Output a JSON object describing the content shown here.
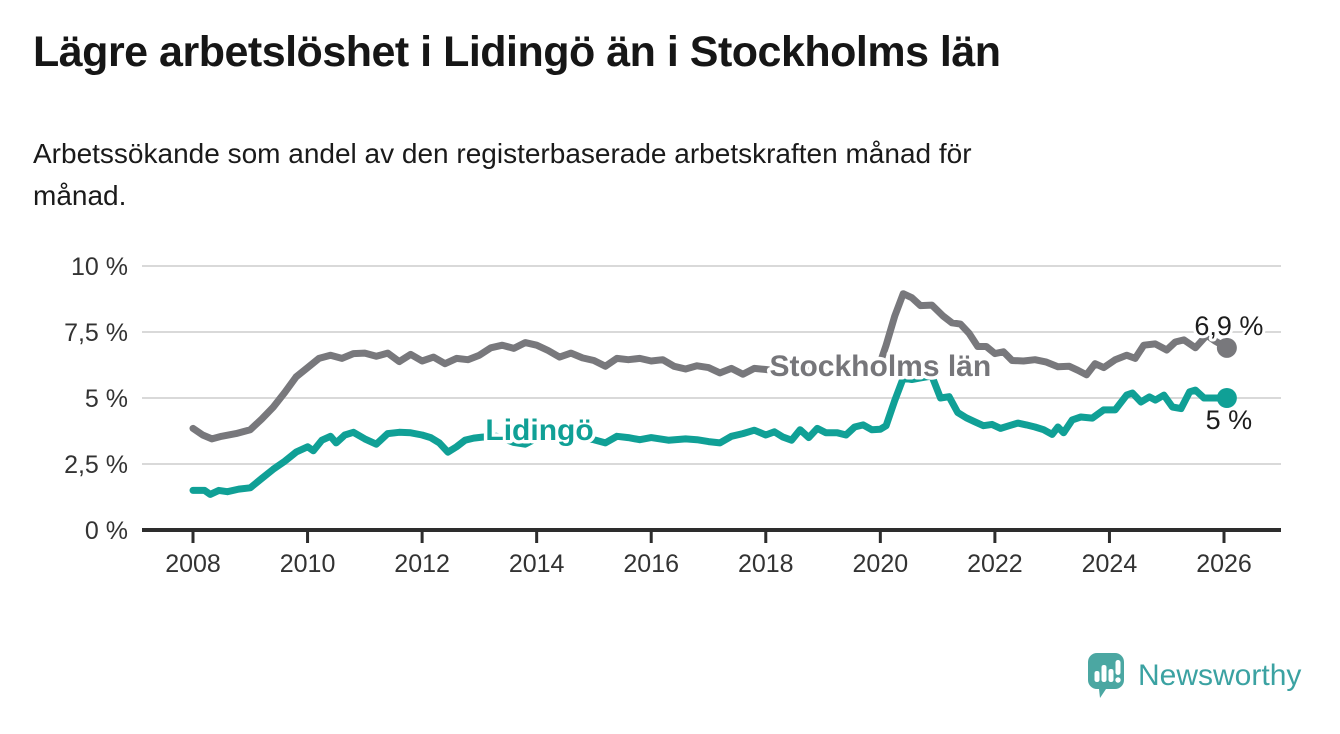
{
  "header": {
    "title": "Lägre arbetslöshet i Lidingö än i Stockholms län",
    "subtitle_line1": "Arbetssökande som andel av den registerbaserade arbetskraften månad för",
    "subtitle_line2": "månad."
  },
  "footer": {
    "brand": "Newsworthy"
  },
  "colors": {
    "stockholm_line": "#78787C",
    "lidingo_line": "#10A096",
    "grid": "#D9D9D9",
    "axis": "#2D2D2D",
    "tick_text": "#333333",
    "end_label_text": "#1D1D1D",
    "logo_icon": "#4BA7A2",
    "logo_text": "#3BA2A2"
  },
  "chart_data": {
    "type": "line",
    "title": "Lägre arbetslöshet i Lidingö än i Stockholms län",
    "xlabel": "",
    "ylabel": "",
    "grid": true,
    "legend_position": "inline-labels",
    "xlim": [
      2007.1,
      2026.95
    ],
    "ylim": [
      0,
      10
    ],
    "x_ticks": [
      {
        "value": 2008,
        "label": "2008"
      },
      {
        "value": 2010,
        "label": "2010"
      },
      {
        "value": 2012,
        "label": "2012"
      },
      {
        "value": 2014,
        "label": "2014"
      },
      {
        "value": 2016,
        "label": "2016"
      },
      {
        "value": 2018,
        "label": "2018"
      },
      {
        "value": 2020,
        "label": "2020"
      },
      {
        "value": 2022,
        "label": "2022"
      },
      {
        "value": 2024,
        "label": "2024"
      },
      {
        "value": 2026,
        "label": "2026"
      }
    ],
    "y_ticks": [
      {
        "value": 0,
        "label": "0 %"
      },
      {
        "value": 2.5,
        "label": "2,5 %"
      },
      {
        "value": 5,
        "label": "5 %"
      },
      {
        "value": 7.5,
        "label": "7,5 %"
      },
      {
        "value": 10,
        "label": "10 %"
      }
    ],
    "series": [
      {
        "name": "Stockholms län",
        "color": "#78787C",
        "label_color": "#76767A",
        "label_pos": {
          "x": 2020.0,
          "y": 6.21
        },
        "end_label": "6,9 %",
        "end_value": 6.9,
        "end_label_side": "above",
        "points": [
          [
            2008.0,
            3.85
          ],
          [
            2008.17,
            3.6
          ],
          [
            2008.33,
            3.45
          ],
          [
            2008.5,
            3.55
          ],
          [
            2008.75,
            3.65
          ],
          [
            2009.0,
            3.8
          ],
          [
            2009.2,
            4.2
          ],
          [
            2009.4,
            4.65
          ],
          [
            2009.6,
            5.2
          ],
          [
            2009.8,
            5.8
          ],
          [
            2010.0,
            6.15
          ],
          [
            2010.2,
            6.5
          ],
          [
            2010.4,
            6.62
          ],
          [
            2010.6,
            6.5
          ],
          [
            2010.8,
            6.68
          ],
          [
            2011.0,
            6.7
          ],
          [
            2011.2,
            6.58
          ],
          [
            2011.4,
            6.7
          ],
          [
            2011.6,
            6.38
          ],
          [
            2011.8,
            6.65
          ],
          [
            2012.0,
            6.4
          ],
          [
            2012.2,
            6.55
          ],
          [
            2012.4,
            6.3
          ],
          [
            2012.6,
            6.5
          ],
          [
            2012.8,
            6.45
          ],
          [
            2013.0,
            6.62
          ],
          [
            2013.2,
            6.9
          ],
          [
            2013.4,
            7.0
          ],
          [
            2013.6,
            6.88
          ],
          [
            2013.8,
            7.1
          ],
          [
            2014.0,
            7.0
          ],
          [
            2014.2,
            6.8
          ],
          [
            2014.4,
            6.55
          ],
          [
            2014.6,
            6.7
          ],
          [
            2014.8,
            6.52
          ],
          [
            2015.0,
            6.42
          ],
          [
            2015.2,
            6.2
          ],
          [
            2015.4,
            6.5
          ],
          [
            2015.6,
            6.45
          ],
          [
            2015.8,
            6.5
          ],
          [
            2016.0,
            6.4
          ],
          [
            2016.2,
            6.45
          ],
          [
            2016.4,
            6.2
          ],
          [
            2016.6,
            6.1
          ],
          [
            2016.8,
            6.22
          ],
          [
            2017.0,
            6.15
          ],
          [
            2017.2,
            5.95
          ],
          [
            2017.4,
            6.12
          ],
          [
            2017.6,
            5.9
          ],
          [
            2017.8,
            6.12
          ],
          [
            2018.0,
            6.08
          ],
          [
            2018.3,
            6.0
          ],
          [
            2018.6,
            6.05
          ],
          [
            2018.9,
            6.05
          ],
          [
            2019.2,
            6.1
          ],
          [
            2019.5,
            6.15
          ],
          [
            2019.8,
            6.22
          ],
          [
            2020.0,
            6.35
          ],
          [
            2020.1,
            7.0
          ],
          [
            2020.25,
            8.1
          ],
          [
            2020.4,
            8.95
          ],
          [
            2020.55,
            8.8
          ],
          [
            2020.7,
            8.5
          ],
          [
            2020.9,
            8.52
          ],
          [
            2021.1,
            8.1
          ],
          [
            2021.25,
            7.85
          ],
          [
            2021.4,
            7.8
          ],
          [
            2021.55,
            7.45
          ],
          [
            2021.7,
            6.95
          ],
          [
            2021.85,
            6.95
          ],
          [
            2022.0,
            6.68
          ],
          [
            2022.15,
            6.75
          ],
          [
            2022.3,
            6.42
          ],
          [
            2022.5,
            6.4
          ],
          [
            2022.7,
            6.45
          ],
          [
            2022.9,
            6.36
          ],
          [
            2023.1,
            6.18
          ],
          [
            2023.3,
            6.2
          ],
          [
            2023.45,
            6.05
          ],
          [
            2023.6,
            5.88
          ],
          [
            2023.75,
            6.3
          ],
          [
            2023.9,
            6.15
          ],
          [
            2024.1,
            6.45
          ],
          [
            2024.3,
            6.62
          ],
          [
            2024.45,
            6.5
          ],
          [
            2024.6,
            7.0
          ],
          [
            2024.8,
            7.05
          ],
          [
            2025.0,
            6.82
          ],
          [
            2025.15,
            7.12
          ],
          [
            2025.3,
            7.2
          ],
          [
            2025.5,
            6.9
          ],
          [
            2025.7,
            7.38
          ],
          [
            2025.85,
            7.15
          ],
          [
            2026.05,
            6.9
          ]
        ]
      },
      {
        "name": "Lidingö",
        "color": "#10A096",
        "label_color": "#10A096",
        "label_pos": {
          "x": 2014.05,
          "y": 3.79
        },
        "end_label": "5 %",
        "end_value": 5.0,
        "end_label_side": "below",
        "points": [
          [
            2008.0,
            1.5
          ],
          [
            2008.2,
            1.5
          ],
          [
            2008.3,
            1.35
          ],
          [
            2008.45,
            1.5
          ],
          [
            2008.6,
            1.45
          ],
          [
            2008.8,
            1.55
          ],
          [
            2009.0,
            1.6
          ],
          [
            2009.2,
            1.95
          ],
          [
            2009.4,
            2.3
          ],
          [
            2009.6,
            2.6
          ],
          [
            2009.8,
            2.95
          ],
          [
            2010.0,
            3.15
          ],
          [
            2010.1,
            3.0
          ],
          [
            2010.25,
            3.4
          ],
          [
            2010.4,
            3.55
          ],
          [
            2010.5,
            3.3
          ],
          [
            2010.65,
            3.6
          ],
          [
            2010.8,
            3.7
          ],
          [
            2011.0,
            3.45
          ],
          [
            2011.2,
            3.25
          ],
          [
            2011.4,
            3.65
          ],
          [
            2011.6,
            3.7
          ],
          [
            2011.8,
            3.68
          ],
          [
            2012.0,
            3.6
          ],
          [
            2012.15,
            3.5
          ],
          [
            2012.3,
            3.3
          ],
          [
            2012.45,
            2.95
          ],
          [
            2012.6,
            3.15
          ],
          [
            2012.75,
            3.4
          ],
          [
            2012.9,
            3.48
          ],
          [
            2013.05,
            3.52
          ],
          [
            2013.3,
            3.55
          ],
          [
            2013.6,
            3.32
          ],
          [
            2013.8,
            3.25
          ],
          [
            2014.0,
            3.48
          ],
          [
            2014.2,
            3.55
          ],
          [
            2014.4,
            3.52
          ],
          [
            2014.6,
            3.68
          ],
          [
            2014.8,
            3.48
          ],
          [
            2015.0,
            3.42
          ],
          [
            2015.2,
            3.3
          ],
          [
            2015.4,
            3.55
          ],
          [
            2015.6,
            3.5
          ],
          [
            2015.8,
            3.42
          ],
          [
            2016.0,
            3.5
          ],
          [
            2016.3,
            3.4
          ],
          [
            2016.6,
            3.45
          ],
          [
            2016.8,
            3.42
          ],
          [
            2017.0,
            3.35
          ],
          [
            2017.2,
            3.3
          ],
          [
            2017.4,
            3.55
          ],
          [
            2017.6,
            3.65
          ],
          [
            2017.8,
            3.78
          ],
          [
            2018.0,
            3.6
          ],
          [
            2018.15,
            3.72
          ],
          [
            2018.3,
            3.52
          ],
          [
            2018.45,
            3.4
          ],
          [
            2018.6,
            3.8
          ],
          [
            2018.75,
            3.5
          ],
          [
            2018.9,
            3.85
          ],
          [
            2019.05,
            3.68
          ],
          [
            2019.25,
            3.68
          ],
          [
            2019.4,
            3.6
          ],
          [
            2019.55,
            3.9
          ],
          [
            2019.7,
            3.98
          ],
          [
            2019.85,
            3.8
          ],
          [
            2020.0,
            3.82
          ],
          [
            2020.1,
            3.95
          ],
          [
            2020.25,
            4.9
          ],
          [
            2020.4,
            5.75
          ],
          [
            2020.55,
            5.7
          ],
          [
            2020.75,
            5.78
          ],
          [
            2020.9,
            5.83
          ],
          [
            2021.05,
            5.0
          ],
          [
            2021.2,
            5.05
          ],
          [
            2021.35,
            4.45
          ],
          [
            2021.5,
            4.25
          ],
          [
            2021.65,
            4.1
          ],
          [
            2021.8,
            3.95
          ],
          [
            2021.95,
            4.0
          ],
          [
            2022.1,
            3.85
          ],
          [
            2022.25,
            3.95
          ],
          [
            2022.4,
            4.05
          ],
          [
            2022.55,
            3.98
          ],
          [
            2022.7,
            3.9
          ],
          [
            2022.85,
            3.8
          ],
          [
            2023.0,
            3.62
          ],
          [
            2023.1,
            3.9
          ],
          [
            2023.2,
            3.68
          ],
          [
            2023.35,
            4.17
          ],
          [
            2023.5,
            4.28
          ],
          [
            2023.7,
            4.24
          ],
          [
            2023.9,
            4.55
          ],
          [
            2024.1,
            4.55
          ],
          [
            2024.3,
            5.11
          ],
          [
            2024.4,
            5.19
          ],
          [
            2024.55,
            4.85
          ],
          [
            2024.7,
            5.04
          ],
          [
            2024.8,
            4.92
          ],
          [
            2024.95,
            5.11
          ],
          [
            2025.1,
            4.66
          ],
          [
            2025.25,
            4.6
          ],
          [
            2025.4,
            5.23
          ],
          [
            2025.5,
            5.3
          ],
          [
            2025.65,
            5.0
          ],
          [
            2025.85,
            5.0
          ],
          [
            2026.05,
            5.0
          ]
        ]
      }
    ]
  }
}
